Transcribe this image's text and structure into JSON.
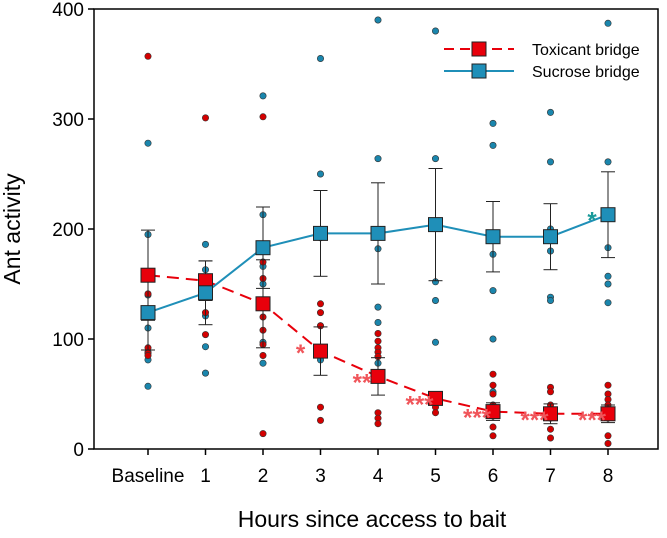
{
  "chart_data": {
    "type": "line",
    "xlabel": "Hours since access to bait",
    "ylabel": "Ant activity",
    "categories": [
      "Baseline",
      "1",
      "2",
      "3",
      "4",
      "5",
      "6",
      "7",
      "8"
    ],
    "ylim": [
      0,
      400
    ],
    "yticks": [
      "0",
      "100",
      "200",
      "300",
      "400"
    ],
    "ytick_values": [
      0,
      100,
      200,
      300,
      400
    ],
    "grid": false,
    "legend_position": "top-right",
    "colors": {
      "toxicant": "#e8000b",
      "sucrose": "#1f8fb8",
      "marker_edge": "#222222",
      "tox_dot": "#d40000",
      "suc_dot": "#1a86ad",
      "sig_tox": "#f0555a",
      "sig_suc": "#1a9a9a"
    },
    "series": [
      {
        "name": "Toxicant bridge",
        "key": "toxicant",
        "style": "dashed",
        "values": [
          158,
          153,
          132,
          89,
          66,
          46,
          34,
          32,
          32
        ],
        "error": [
          41,
          18,
          40,
          22,
          17,
          5,
          8,
          9,
          8
        ],
        "points": [
          [
            357,
            158,
            141,
            92,
            87,
            85
          ],
          [
            301,
            151,
            138,
            124,
            104
          ],
          [
            302,
            170,
            155,
            120,
            108,
            95,
            85,
            14
          ],
          [
            132,
            124,
            112,
            88,
            38,
            26
          ],
          [
            105,
            98,
            92,
            88,
            84,
            63,
            33,
            28,
            23
          ],
          [
            45,
            43,
            38,
            33
          ],
          [
            68,
            58,
            50,
            40,
            30,
            20,
            12
          ],
          [
            56,
            52,
            40,
            33,
            28,
            18,
            10
          ],
          [
            58,
            50,
            45,
            40,
            28,
            12,
            5
          ]
        ]
      },
      {
        "name": "Sucrose bridge",
        "key": "sucrose",
        "style": "solid",
        "values": [
          124,
          142,
          183,
          196,
          196,
          204,
          193,
          193,
          213
        ],
        "error": [
          34,
          29,
          37,
          39,
          46,
          51,
          32,
          30,
          39
        ],
        "points": [
          [
            278,
            195,
            140,
            110,
            88,
            81,
            57
          ],
          [
            186,
            163,
            121,
            93,
            69
          ],
          [
            321,
            213,
            186,
            166,
            150,
            97,
            78
          ],
          [
            355,
            250,
            192,
            112,
            90,
            81
          ],
          [
            390,
            264,
            182,
            129,
            115,
            78
          ],
          [
            380,
            264,
            152,
            135,
            97,
            45
          ],
          [
            296,
            276,
            177,
            144,
            100,
            52
          ],
          [
            306,
            261,
            200,
            180,
            138,
            135
          ],
          [
            387,
            261,
            183,
            157,
            150,
            133
          ]
        ]
      }
    ],
    "significance": [
      {
        "series": "toxicant",
        "category": "3",
        "label": "*"
      },
      {
        "series": "toxicant",
        "category": "4",
        "label": "**"
      },
      {
        "series": "toxicant",
        "category": "5",
        "label": "***"
      },
      {
        "series": "toxicant",
        "category": "6",
        "label": "***"
      },
      {
        "series": "toxicant",
        "category": "7",
        "label": "***"
      },
      {
        "series": "toxicant",
        "category": "8",
        "label": "***"
      },
      {
        "series": "sucrose",
        "category": "8",
        "label": "*"
      }
    ]
  }
}
